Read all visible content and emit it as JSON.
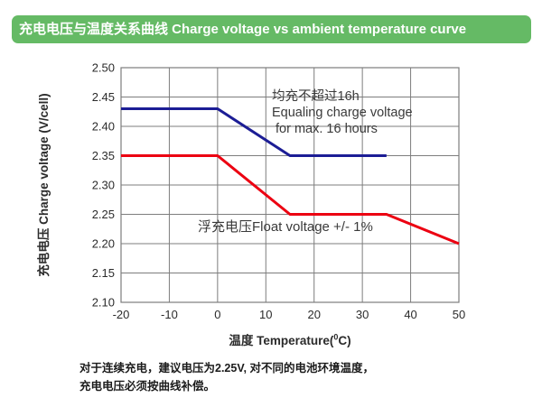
{
  "header": {
    "title": "充电电压与温度关系曲线 Charge voltage vs ambient temperature curve"
  },
  "colors": {
    "banner_green": "#65ba65",
    "banner_text": "#ffffff",
    "grid": "#7d7d7d",
    "tick_text": "#2b2b2b",
    "equalize_blue": "#1c1d95",
    "float_red": "#ec0011"
  },
  "chart_data": {
    "type": "line",
    "title": "充电电压与温度关系曲线 Charge voltage vs ambient temperature curve",
    "xlabel": {
      "pre": "温度 Temperature(",
      "sup": "0",
      "post": "C)"
    },
    "ylabel": "充电电压 Charge voltage (V/cell)",
    "xlim": [
      -20,
      50
    ],
    "ylim": [
      2.1,
      2.5
    ],
    "xticks": [
      -20,
      -10,
      0,
      10,
      20,
      30,
      40,
      50
    ],
    "xtick_labels": [
      "-20",
      "-10",
      "0",
      "10",
      "20",
      "30",
      "40",
      "50"
    ],
    "yticks": [
      2.5,
      2.45,
      2.4,
      2.35,
      2.3,
      2.25,
      2.2,
      2.15,
      2.1
    ],
    "ytick_labels": [
      "2.50",
      "2.45",
      "2.40",
      "2.35",
      "2.30",
      "2.25",
      "2.20",
      "2.15",
      "2.10"
    ],
    "grid": true,
    "legend_position": "none",
    "series": [
      {
        "name": "equalizing-charge-voltage",
        "color": "#1c1d95",
        "points": [
          [
            -20,
            2.43
          ],
          [
            0,
            2.43
          ],
          [
            15,
            2.35
          ],
          [
            35,
            2.35
          ]
        ]
      },
      {
        "name": "float-voltage",
        "color": "#ec0011",
        "points": [
          [
            -20,
            2.35
          ],
          [
            0,
            2.35
          ],
          [
            15,
            2.25
          ],
          [
            35,
            2.25
          ],
          [
            50,
            2.2
          ]
        ]
      }
    ],
    "annotations": [
      {
        "id": "equalize-note",
        "text": "均充不超过16h\nEqualing charge voltage\n for max. 16 hours"
      },
      {
        "id": "float-note",
        "text": "浮充电压Float voltage +/- 1%"
      }
    ]
  },
  "footer": {
    "line1": "对于连续充电，建议电压为2.25V, 对不同的电池环境温度，",
    "line2": "充电电压必须按曲线补偿。"
  }
}
